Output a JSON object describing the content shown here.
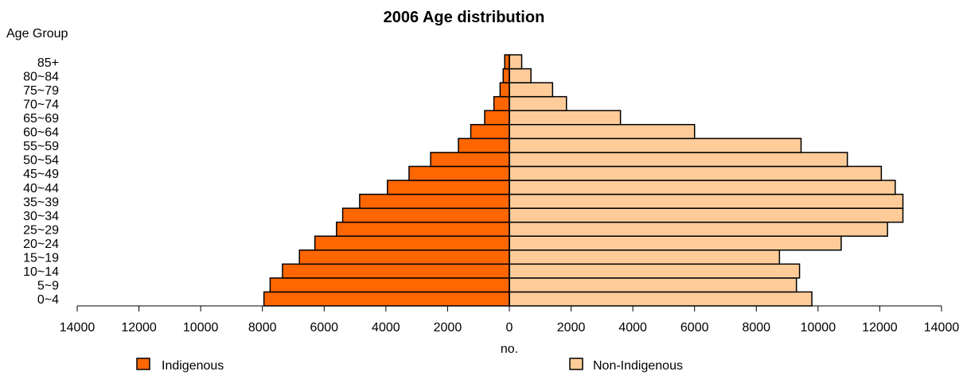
{
  "chart_data": {
    "type": "bar",
    "orientation": "horizontal",
    "layout": "population-pyramid",
    "title": "2006 Age distribution",
    "xlabel": "no.",
    "ylabel": "Age Group",
    "categories": [
      "0~4",
      "5~9",
      "10~14",
      "15~19",
      "20~24",
      "25~29",
      "30~34",
      "35~39",
      "40~44",
      "45~49",
      "50~54",
      "55~59",
      "60~64",
      "65~69",
      "70~74",
      "75~79",
      "80~84",
      "85+"
    ],
    "series": [
      {
        "name": "Indigenous",
        "side": "left",
        "color": "#ff6600",
        "values": [
          7950,
          7750,
          7350,
          6800,
          6300,
          5600,
          5400,
          4850,
          3950,
          3250,
          2550,
          1650,
          1250,
          800,
          500,
          300,
          200,
          150
        ]
      },
      {
        "name": "Non-Indigenous",
        "side": "right",
        "color": "#ffcc99",
        "values": [
          9800,
          9300,
          9400,
          8750,
          10750,
          12250,
          12750,
          12750,
          12500,
          12050,
          10950,
          9450,
          6000,
          3600,
          1850,
          1400,
          700,
          400
        ]
      }
    ],
    "xlim": [
      -14000,
      14000
    ],
    "xticks": [
      -14000,
      -12000,
      -10000,
      -8000,
      -6000,
      -4000,
      -2000,
      0,
      2000,
      4000,
      6000,
      8000,
      10000,
      12000,
      14000
    ],
    "xtick_labels": [
      "14000",
      "12000",
      "10000",
      "8000",
      "6000",
      "4000",
      "2000",
      "0",
      "2000",
      "4000",
      "6000",
      "8000",
      "10000",
      "12000",
      "14000"
    ],
    "grid": false,
    "legend_position": "bottom"
  }
}
